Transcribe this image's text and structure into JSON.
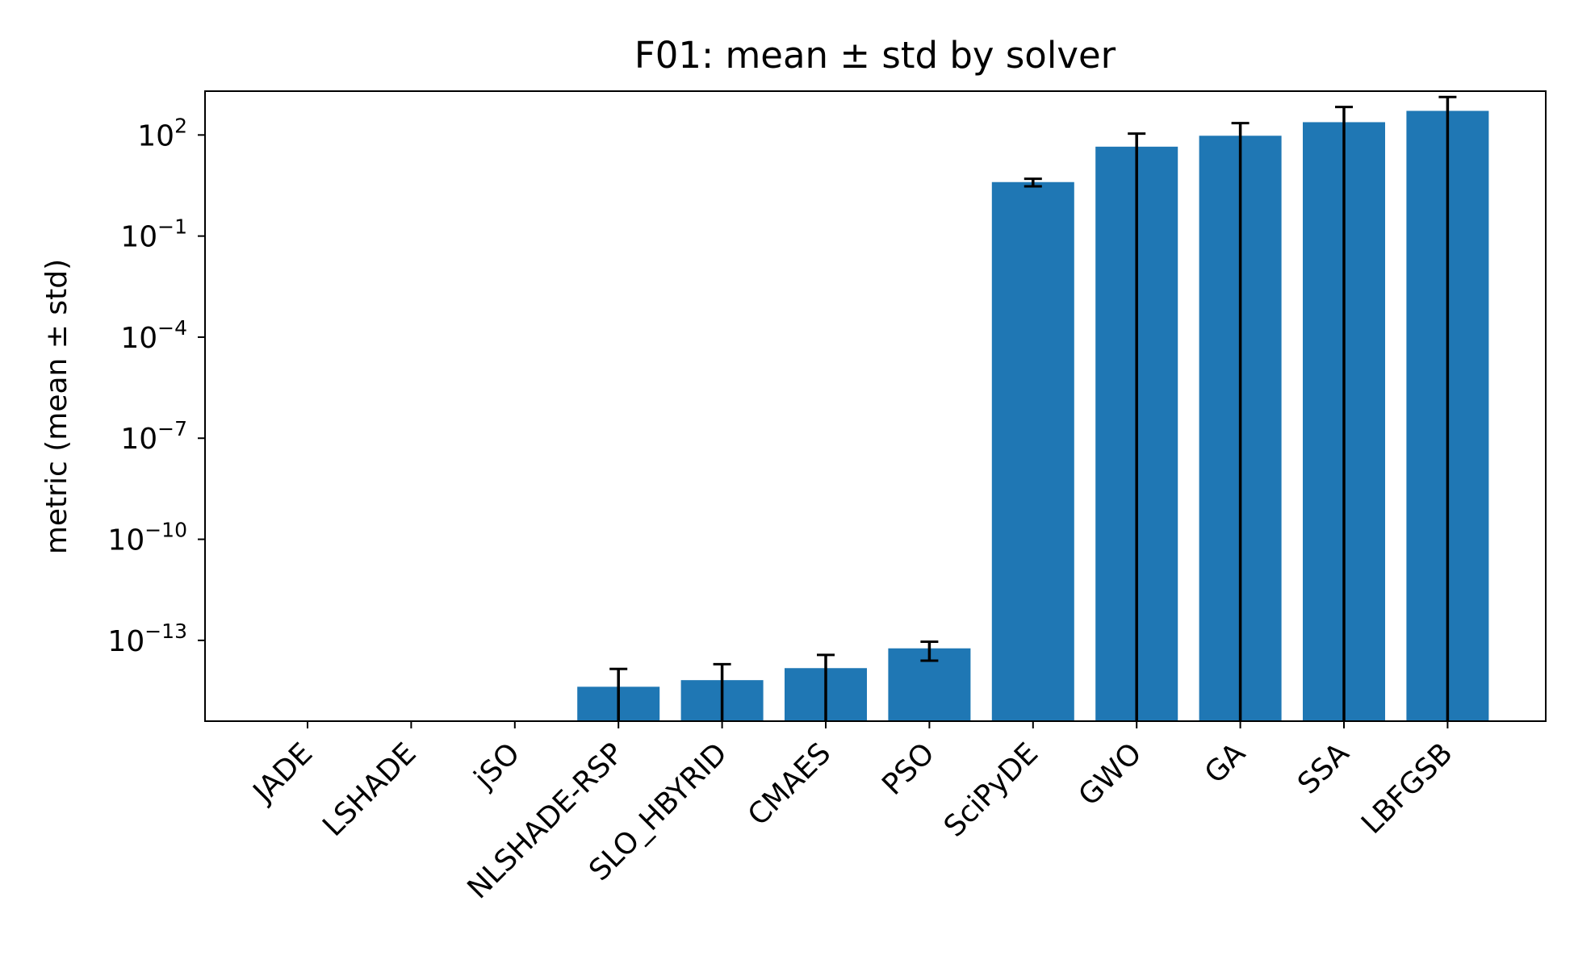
{
  "chart_data": {
    "type": "bar",
    "title": "F01: mean ± std by solver",
    "xlabel": "",
    "ylabel": "metric (mean ± std)",
    "yscale": "log",
    "ylim": [
      4e-16,
      2000.0
    ],
    "yticks": [
      {
        "base": "10",
        "exp": "2",
        "value": 100
      },
      {
        "base": "10",
        "exp": "−1",
        "value": 0.1
      },
      {
        "base": "10",
        "exp": "−4",
        "value": 0.0001
      },
      {
        "base": "10",
        "exp": "−7",
        "value": 1e-07
      },
      {
        "base": "10",
        "exp": "−10",
        "value": 1e-10
      },
      {
        "base": "10",
        "exp": "−13",
        "value": 1e-13
      }
    ],
    "grid": false,
    "legend": "none",
    "bar_color": "#1f77b4",
    "errorbar_color": "#000000",
    "categories": [
      "JADE",
      "LSHADE",
      "jSO",
      "NLSHADE-RSP",
      "SLO_HBYRID",
      "CMAES",
      "PSO",
      "SciPyDE",
      "GWO",
      "GA",
      "SSA",
      "LBFGSB"
    ],
    "values": [
      0,
      0,
      0,
      4.2e-15,
      6.6e-15,
      1.5e-14,
      5.8e-14,
      4.0,
      45,
      95,
      240,
      520
    ],
    "errors": [
      0,
      0,
      0,
      1e-14,
      1.3e-14,
      2.2e-14,
      3.3e-14,
      1.0,
      65,
      130,
      440,
      820
    ]
  }
}
